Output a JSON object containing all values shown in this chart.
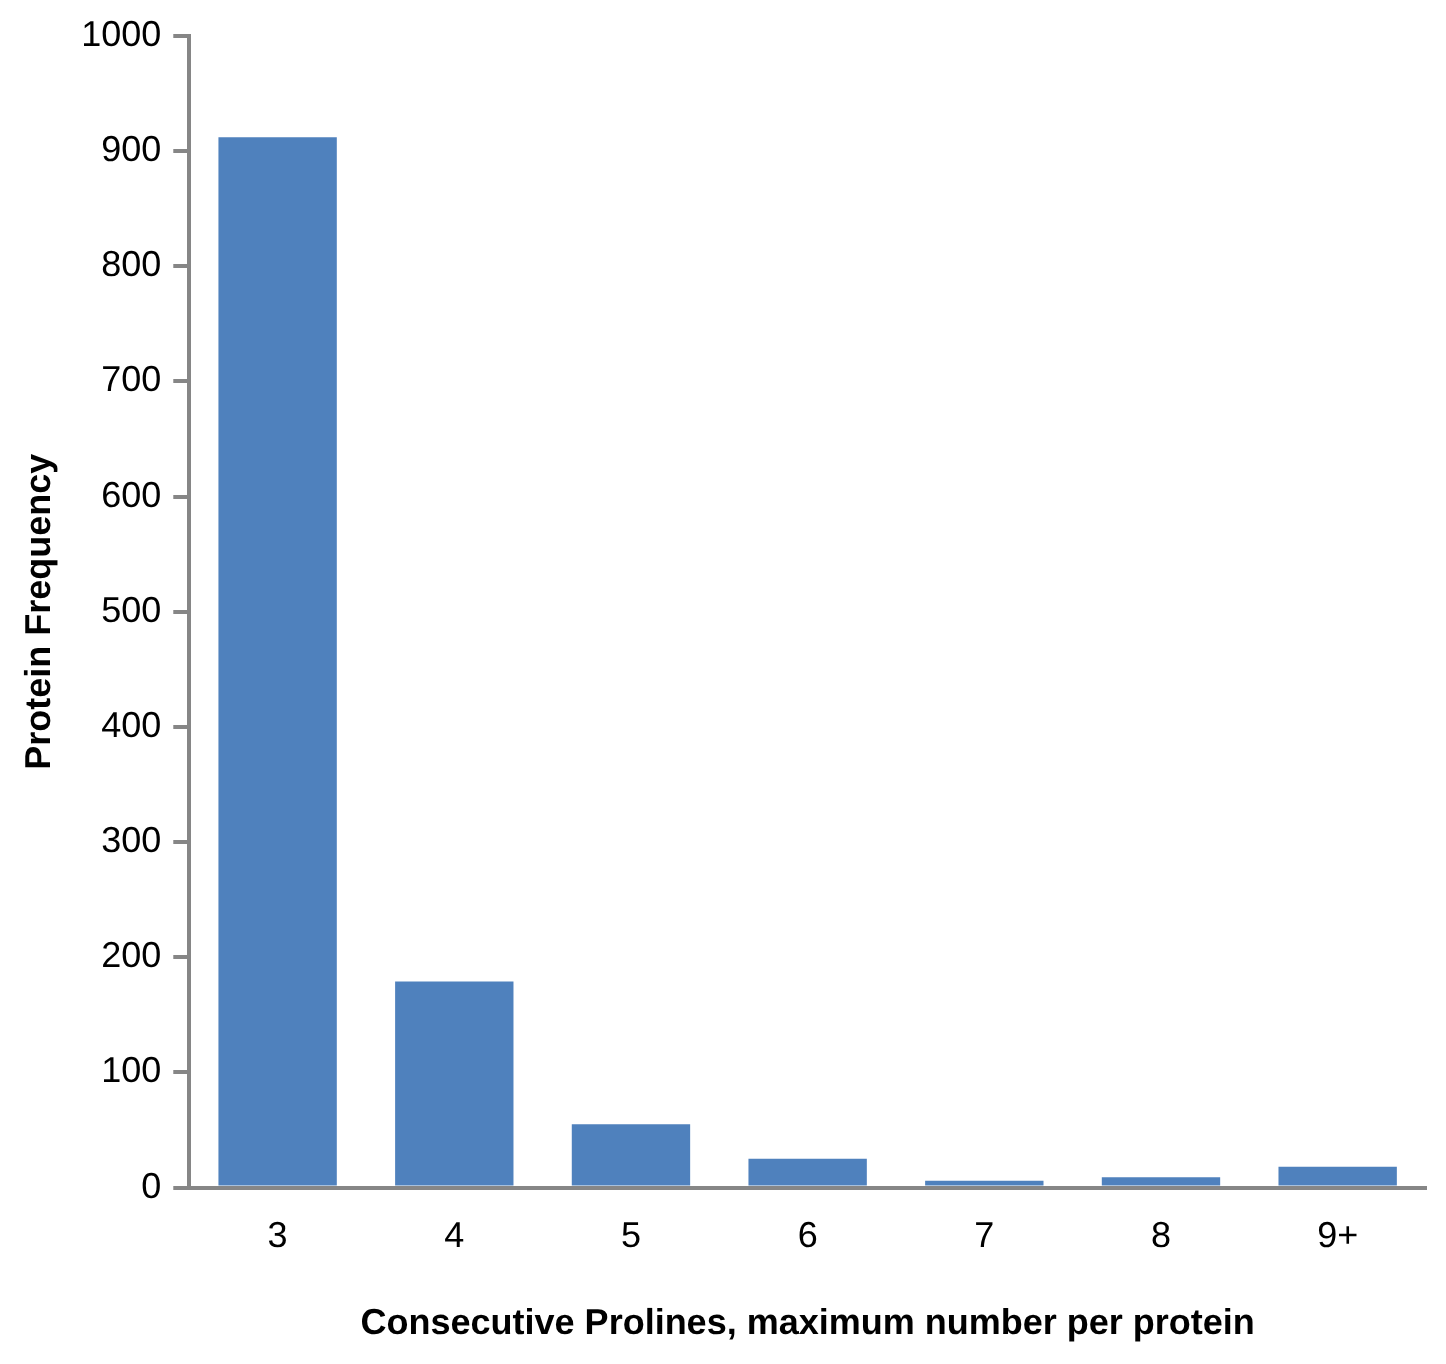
{
  "chart_data": {
    "type": "bar",
    "xlabel": "Consecutive Prolines, maximum number per protein",
    "ylabel": "Protein Frequency",
    "categories": [
      "3",
      "4",
      "5",
      "6",
      "7",
      "8",
      "9+"
    ],
    "values": [
      912,
      179,
      55,
      25,
      6,
      9,
      18
    ],
    "color": "#4f81bd",
    "ylim": [
      0,
      1000
    ],
    "yticks": [
      0,
      100,
      200,
      300,
      400,
      500,
      600,
      700,
      800,
      900,
      1000
    ],
    "grid": false,
    "legend": false
  }
}
